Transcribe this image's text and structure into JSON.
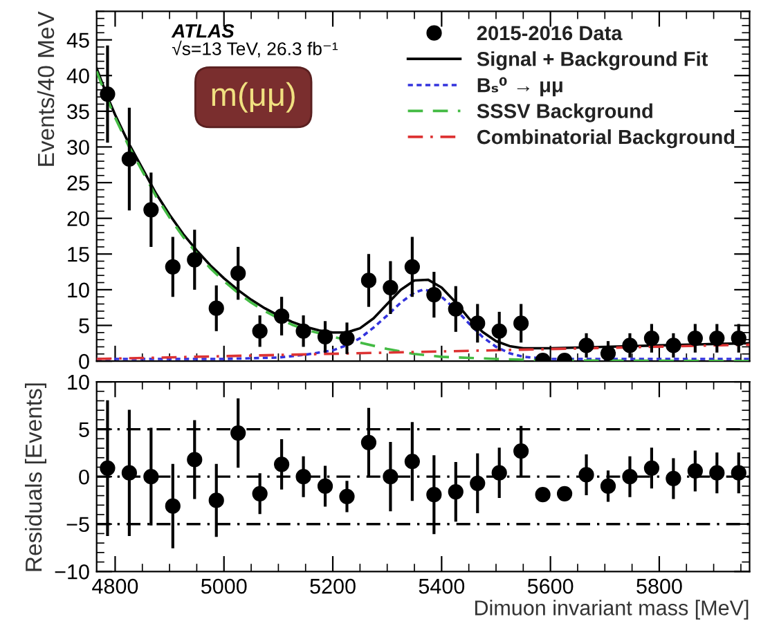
{
  "chart_data": [
    {
      "type": "scatter",
      "ylabel": "Events/40 MeV",
      "xlim": [
        4766,
        5966
      ],
      "ylim": [
        0,
        49
      ],
      "xticks": [
        4800,
        5000,
        5200,
        5400,
        5600,
        5800
      ],
      "yticks": [
        0,
        5,
        10,
        15,
        20,
        25,
        30,
        35,
        40,
        45
      ],
      "tick_labels": "y",
      "legend": "top right",
      "annotations": [
        "ATLAS",
        "√s=13 TeV, 26.3 fb⁻¹",
        "m(μμ)"
      ],
      "series": [
        {
          "name": "2015-2016 Data",
          "marker": "circle",
          "color": "#000000",
          "x": [
            4786,
            4826,
            4866,
            4906,
            4946,
            4986,
            5026,
            5066,
            5106,
            5146,
            5186,
            5226,
            5266,
            5306,
            5346,
            5386,
            5426,
            5466,
            5506,
            5546,
            5586,
            5626,
            5666,
            5706,
            5746,
            5786,
            5826,
            5866,
            5906,
            5946
          ],
          "values": [
            37.4,
            28.3,
            21.2,
            13.2,
            14.2,
            7.4,
            12.3,
            4.2,
            6.3,
            4.2,
            3.4,
            3.2,
            11.3,
            10.3,
            13.2,
            9.3,
            7.3,
            5.3,
            4.2,
            5.3,
            0.1,
            0.1,
            2.2,
            1.1,
            2.2,
            3.2,
            2.2,
            3.2,
            3.2,
            3.2
          ],
          "errors": [
            6.6,
            7,
            5,
            4,
            4,
            3,
            3.5,
            2,
            2.5,
            2,
            2,
            2,
            3.5,
            3.5,
            4,
            3,
            3,
            2.5,
            2.5,
            2.5,
            null,
            null,
            1.5,
            1.5,
            1.5,
            1.8,
            1.5,
            1.8,
            1.8,
            1.8
          ]
        },
        {
          "name": "Signal + Background Fit",
          "type": "line",
          "line_style": "solid",
          "color": "#000000",
          "x": [
            4766,
            4786,
            4800,
            4825,
            4850,
            4875,
            4900,
            4925,
            4950,
            4975,
            5000,
            5025,
            5050,
            5075,
            5100,
            5125,
            5150,
            5175,
            5200,
            5225,
            5250,
            5275,
            5300,
            5325,
            5350,
            5375,
            5400,
            5425,
            5450,
            5475,
            5500,
            5525,
            5550,
            5600,
            5700,
            5800,
            5900,
            5966
          ],
          "values": [
            41,
            37,
            34.5,
            30.5,
            27,
            23.5,
            20.5,
            17.8,
            15.5,
            13.4,
            11.6,
            10,
            8.6,
            7.4,
            6.4,
            5.5,
            4.8,
            4.3,
            4.0,
            4.0,
            4.6,
            6.0,
            8.0,
            10.0,
            11.3,
            11.4,
            10.3,
            8.3,
            6.0,
            4.1,
            2.8,
            2.1,
            1.8,
            1.8,
            2.0,
            2.2,
            2.4,
            2.5
          ]
        },
        {
          "name": "Bₛ⁰ → μμ",
          "type": "line",
          "line_style": "dotted",
          "color": "#3333dd",
          "x": [
            4766,
            5000,
            5100,
            5150,
            5200,
            5225,
            5250,
            5275,
            5300,
            5325,
            5350,
            5366,
            5375,
            5400,
            5425,
            5450,
            5475,
            5500,
            5525,
            5550,
            5600,
            5966
          ],
          "values": [
            0.3,
            0.3,
            0.5,
            0.9,
            1.5,
            2.2,
            3.2,
            4.7,
            6.4,
            8.2,
            9.6,
            10.0,
            9.9,
            9.0,
            7.3,
            5.3,
            3.4,
            2.0,
            1.1,
            0.6,
            0.3,
            0.3
          ]
        },
        {
          "name": "SSSV Background",
          "type": "line",
          "line_style": "dashed",
          "color": "#44bb44",
          "x": [
            4766,
            4786,
            4800,
            4825,
            4850,
            4875,
            4900,
            4925,
            4950,
            4975,
            5000,
            5025,
            5050,
            5075,
            5100,
            5125,
            5150,
            5175,
            5200,
            5250,
            5300,
            5350,
            5400,
            5500,
            5600,
            5966
          ],
          "values": [
            40.6,
            36.6,
            34.1,
            30.1,
            26.6,
            23.1,
            20.1,
            17.4,
            15.1,
            13.0,
            11.2,
            9.6,
            8.2,
            7.0,
            6.0,
            5.1,
            4.4,
            3.9,
            3.4,
            2.6,
            1.7,
            1.0,
            0.6,
            0.3,
            0.1,
            0
          ]
        },
        {
          "name": "Combinatorial Background",
          "type": "line",
          "line_style": "dashdot",
          "color": "#dd3333",
          "x": [
            4766,
            5966
          ],
          "values": [
            0.3,
            2.3
          ]
        }
      ]
    },
    {
      "type": "scatter",
      "ylabel": "Residuals [Events]",
      "xlabel": "Dimuon invariant mass [MeV]",
      "xlim": [
        4766,
        5966
      ],
      "ylim": [
        -10,
        10
      ],
      "xticks": [
        4800,
        5000,
        5200,
        5400,
        5600,
        5800
      ],
      "yticks": [
        -10,
        -5,
        0,
        5,
        10
      ],
      "marker": "circle",
      "ref_lines": [
        {
          "axis": "y",
          "value": -5,
          "line_style": "dashdot",
          "color": "#000000"
        },
        {
          "axis": "y",
          "value": 0,
          "line_style": "dashdot",
          "color": "#000000"
        },
        {
          "axis": "y",
          "value": 5,
          "line_style": "dashdot",
          "color": "#000000"
        }
      ],
      "series": [
        {
          "color": "#000000",
          "x": [
            4786,
            4826,
            4866,
            4906,
            4946,
            4986,
            5026,
            5066,
            5106,
            5146,
            5186,
            5226,
            5266,
            5306,
            5346,
            5386,
            5426,
            5466,
            5506,
            5546,
            5586,
            5626,
            5666,
            5706,
            5746,
            5786,
            5826,
            5866,
            5906,
            5946
          ],
          "values": [
            0.9,
            0.4,
            0,
            -3.1,
            1.8,
            -2.5,
            4.6,
            -1.8,
            1.3,
            0,
            -1,
            -2.1,
            3.6,
            0,
            1.6,
            -1.9,
            -1.6,
            -0.7,
            0.4,
            2.7,
            -1.9,
            -1.8,
            0.2,
            -1,
            0,
            0.9,
            -0.2,
            0.6,
            0.4,
            0.4
          ],
          "errors": [
            7,
            6.5,
            5,
            4.3,
            4,
            3.7,
            3.5,
            2,
            2.5,
            2,
            2,
            1.5,
            3.5,
            3.5,
            4,
            4,
            3,
            3,
            2.5,
            2.5,
            null,
            null,
            2,
            1.5,
            2,
            2,
            2,
            2,
            2,
            2
          ]
        }
      ]
    }
  ]
}
